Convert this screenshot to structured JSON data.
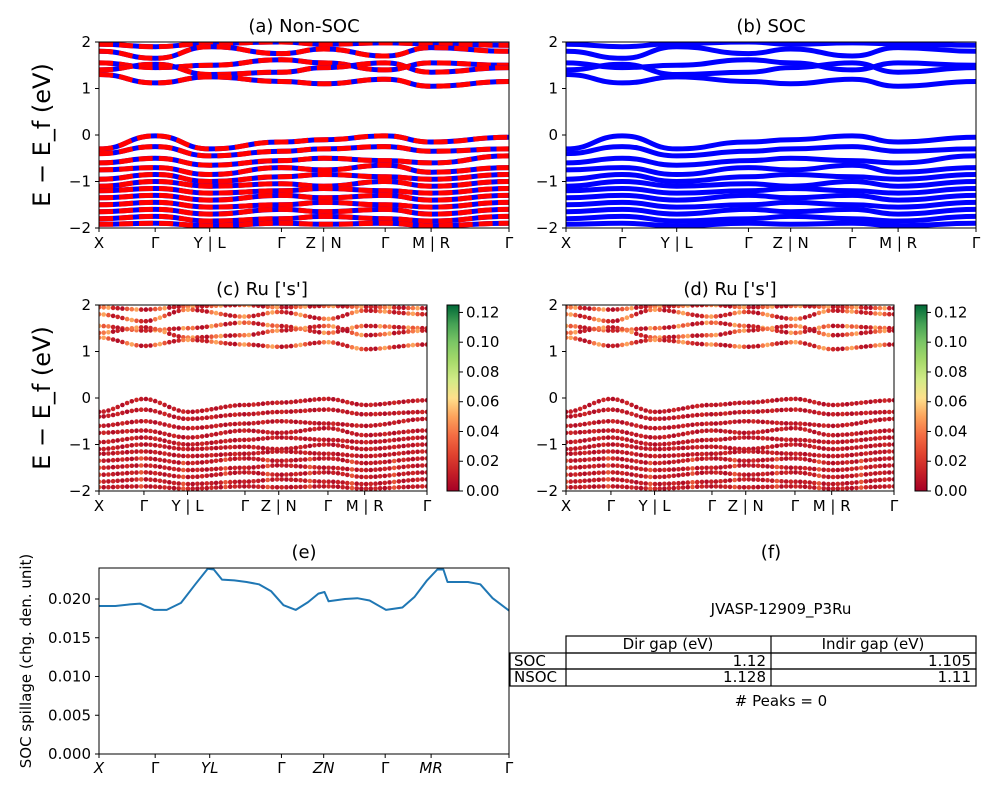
{
  "panels": {
    "a": {
      "title": "(a) Non-SOC"
    },
    "b": {
      "title": "(b) SOC"
    },
    "c": {
      "title": "(c)  Ru ['s']"
    },
    "d": {
      "title": "(d) Ru ['s']"
    },
    "e": {
      "title": "(e)"
    },
    "f": {
      "title": "(f)"
    }
  },
  "band_ylabel": "E − E_f (eV)",
  "band_yticks": [
    "2",
    "1",
    "0",
    "−1",
    "−2"
  ],
  "kpath_labels": [
    "X",
    "Γ",
    "Y | L",
    "Γ",
    "Z | N",
    "Γ",
    "M | R",
    "Γ"
  ],
  "spill_kpath_labels": [
    "X",
    "Γ",
    "YL",
    "Γ",
    "ZN",
    "Γ",
    "MR",
    "Γ"
  ],
  "colorbar_ticks": [
    "0.12",
    "0.10",
    "0.08",
    "0.06",
    "0.04",
    "0.02",
    "0.00"
  ],
  "colors": {
    "nonsoc_red": "#ff0000",
    "nonsoc_blue": "#0000ff",
    "soc_blue": "#0000ff",
    "spill_line": "#1f77b4"
  },
  "summary": {
    "id": "JVASP-12909_P3Ru",
    "col_headers": [
      "Dir gap (eV)",
      "Indir gap (eV)"
    ],
    "rows": [
      {
        "label": "SOC",
        "dir": "1.12",
        "indir": "1.105"
      },
      {
        "label": "NSOC",
        "dir": "1.128",
        "indir": "1.11"
      }
    ],
    "peaks": "# Peaks = 0"
  },
  "chart_data": [
    {
      "type": "line",
      "title": "(a) Non-SOC",
      "ylabel": "E − E_f (eV)",
      "ylim": [
        -2,
        2
      ],
      "x_tick_labels": [
        "X",
        "Γ",
        "Y | L",
        "Γ",
        "Z | N",
        "Γ",
        "M | R",
        "Γ"
      ],
      "segment_breaks": [
        0,
        0.137,
        0.27,
        0.445,
        0.548,
        0.698,
        0.81,
        1.0
      ],
      "series": [
        {
          "values": [
            1.95,
            1.9,
            1.97,
            2.0,
            1.95,
            1.98,
            1.96,
            1.93
          ]
        },
        {
          "values": [
            1.8,
            1.65,
            1.9,
            1.75,
            1.85,
            1.7,
            1.88,
            1.8
          ]
        },
        {
          "values": [
            1.55,
            1.45,
            1.5,
            1.62,
            1.55,
            1.4,
            1.55,
            1.5
          ]
        },
        {
          "values": [
            1.4,
            1.52,
            1.3,
            1.35,
            1.45,
            1.55,
            1.35,
            1.45
          ]
        },
        {
          "values": [
            1.3,
            1.12,
            1.25,
            1.15,
            1.1,
            1.2,
            1.05,
            1.15
          ]
        },
        {
          "values": [
            -0.3,
            -0.02,
            -0.3,
            -0.15,
            -0.1,
            -0.02,
            -0.15,
            -0.05
          ]
        },
        {
          "values": [
            -0.4,
            -0.25,
            -0.45,
            -0.35,
            -0.3,
            -0.25,
            -0.35,
            -0.3
          ]
        },
        {
          "values": [
            -0.6,
            -0.5,
            -0.65,
            -0.55,
            -0.5,
            -0.55,
            -0.6,
            -0.45
          ]
        },
        {
          "values": [
            -0.75,
            -0.7,
            -0.85,
            -0.7,
            -0.75,
            -0.65,
            -0.8,
            -0.7
          ]
        },
        {
          "values": [
            -0.95,
            -0.85,
            -1.0,
            -0.9,
            -0.85,
            -0.9,
            -0.95,
            -0.85
          ]
        },
        {
          "values": [
            -1.1,
            -1.0,
            -1.1,
            -1.05,
            -1.1,
            -1.0,
            -1.1,
            -1.0
          ]
        },
        {
          "values": [
            -1.2,
            -1.15,
            -1.25,
            -1.2,
            -1.15,
            -1.2,
            -1.25,
            -1.15
          ]
        },
        {
          "values": [
            -1.35,
            -1.3,
            -1.4,
            -1.3,
            -1.35,
            -1.3,
            -1.4,
            -1.3
          ]
        },
        {
          "values": [
            -1.5,
            -1.45,
            -1.55,
            -1.5,
            -1.45,
            -1.5,
            -1.55,
            -1.45
          ]
        },
        {
          "values": [
            -1.65,
            -1.6,
            -1.7,
            -1.6,
            -1.65,
            -1.6,
            -1.7,
            -1.6
          ]
        },
        {
          "values": [
            -1.8,
            -1.75,
            -1.85,
            -1.8,
            -1.75,
            -1.8,
            -1.85,
            -1.75
          ]
        },
        {
          "values": [
            -1.92,
            -1.9,
            -1.95,
            -1.9,
            -1.92,
            -1.9,
            -1.95,
            -1.9
          ]
        }
      ]
    },
    {
      "type": "line",
      "title": "(b) SOC",
      "ylim": [
        -2,
        2
      ],
      "x_tick_labels": [
        "X",
        "Γ",
        "Y | L",
        "Γ",
        "Z | N",
        "Γ",
        "M | R",
        "Γ"
      ],
      "series": [
        {
          "values": [
            1.95,
            1.9,
            1.97,
            2.0,
            1.95,
            1.98,
            1.96,
            1.93
          ]
        },
        {
          "values": [
            1.8,
            1.65,
            1.9,
            1.75,
            1.85,
            1.7,
            1.88,
            1.8
          ]
        },
        {
          "values": [
            1.55,
            1.45,
            1.5,
            1.62,
            1.55,
            1.4,
            1.55,
            1.5
          ]
        },
        {
          "values": [
            1.4,
            1.52,
            1.3,
            1.35,
            1.45,
            1.55,
            1.35,
            1.45
          ]
        },
        {
          "values": [
            1.3,
            1.12,
            1.25,
            1.15,
            1.1,
            1.2,
            1.05,
            1.15
          ]
        },
        {
          "values": [
            -0.3,
            -0.02,
            -0.3,
            -0.15,
            -0.1,
            -0.02,
            -0.15,
            -0.05
          ]
        },
        {
          "values": [
            -0.4,
            -0.25,
            -0.45,
            -0.35,
            -0.3,
            -0.25,
            -0.35,
            -0.3
          ]
        },
        {
          "values": [
            -0.6,
            -0.5,
            -0.65,
            -0.55,
            -0.5,
            -0.55,
            -0.6,
            -0.45
          ]
        },
        {
          "values": [
            -0.75,
            -0.7,
            -0.85,
            -0.7,
            -0.75,
            -0.65,
            -0.8,
            -0.7
          ]
        },
        {
          "values": [
            -0.95,
            -0.85,
            -1.0,
            -0.9,
            -0.85,
            -0.9,
            -0.95,
            -0.85
          ]
        },
        {
          "values": [
            -1.1,
            -1.0,
            -1.1,
            -1.05,
            -1.1,
            -1.0,
            -1.1,
            -1.0
          ]
        },
        {
          "values": [
            -1.2,
            -1.15,
            -1.25,
            -1.2,
            -1.15,
            -1.2,
            -1.25,
            -1.15
          ]
        },
        {
          "values": [
            -1.35,
            -1.3,
            -1.4,
            -1.3,
            -1.35,
            -1.3,
            -1.4,
            -1.3
          ]
        },
        {
          "values": [
            -1.5,
            -1.45,
            -1.55,
            -1.5,
            -1.45,
            -1.5,
            -1.55,
            -1.45
          ]
        },
        {
          "values": [
            -1.65,
            -1.6,
            -1.7,
            -1.6,
            -1.65,
            -1.6,
            -1.7,
            -1.6
          ]
        },
        {
          "values": [
            -1.8,
            -1.75,
            -1.85,
            -1.8,
            -1.75,
            -1.8,
            -1.85,
            -1.75
          ]
        },
        {
          "values": [
            -1.92,
            -1.9,
            -1.95,
            -1.9,
            -1.92,
            -1.9,
            -1.95,
            -1.9
          ]
        }
      ]
    },
    {
      "type": "scatter",
      "title": "(c)  Ru ['s']",
      "ylabel": "E − E_f (eV)",
      "ylim": [
        -2,
        2
      ],
      "colorbar_range": [
        0.0,
        0.125
      ],
      "colorbar_ticks": [
        0.0,
        0.02,
        0.04,
        0.06,
        0.08,
        0.1,
        0.12
      ],
      "x_tick_labels": [
        "X",
        "Γ",
        "Y | L",
        "Γ",
        "Z | N",
        "Γ",
        "M | R",
        "Γ"
      ]
    },
    {
      "type": "scatter",
      "title": "(d) Ru ['s']",
      "ylim": [
        -2,
        2
      ],
      "colorbar_range": [
        0.0,
        0.125
      ],
      "colorbar_ticks": [
        0.0,
        0.02,
        0.04,
        0.06,
        0.08,
        0.1,
        0.12
      ],
      "x_tick_labels": [
        "X",
        "Γ",
        "Y | L",
        "Γ",
        "Z | N",
        "Γ",
        "M | R",
        "Γ"
      ]
    },
    {
      "type": "line",
      "title": "(e)",
      "ylabel": "SOC spillage (chg. den. unit)",
      "ylim": [
        0.0,
        0.024
      ],
      "yticks": [
        0.0,
        0.005,
        0.01,
        0.015,
        0.02
      ],
      "x_tick_labels": [
        "X",
        "Γ",
        "YL",
        "Γ",
        "ZN",
        "Γ",
        "MR",
        "Γ"
      ],
      "x": [
        0.0,
        0.04,
        0.075,
        0.1,
        0.135,
        0.165,
        0.2,
        0.235,
        0.265,
        0.28,
        0.3,
        0.33,
        0.36,
        0.39,
        0.42,
        0.45,
        0.48,
        0.51,
        0.535,
        0.55,
        0.56,
        0.6,
        0.63,
        0.66,
        0.7,
        0.74,
        0.77,
        0.8,
        0.825,
        0.84,
        0.85,
        0.9,
        0.93,
        0.96,
        1.0
      ],
      "values": [
        0.0191,
        0.0191,
        0.0193,
        0.0194,
        0.0186,
        0.0186,
        0.0195,
        0.0219,
        0.0239,
        0.0238,
        0.0225,
        0.0224,
        0.0222,
        0.0219,
        0.021,
        0.0192,
        0.0186,
        0.0196,
        0.0207,
        0.0209,
        0.0197,
        0.02,
        0.0201,
        0.0198,
        0.0186,
        0.0189,
        0.0203,
        0.0224,
        0.0238,
        0.0238,
        0.0222,
        0.0222,
        0.0219,
        0.0201,
        0.0185
      ]
    }
  ]
}
